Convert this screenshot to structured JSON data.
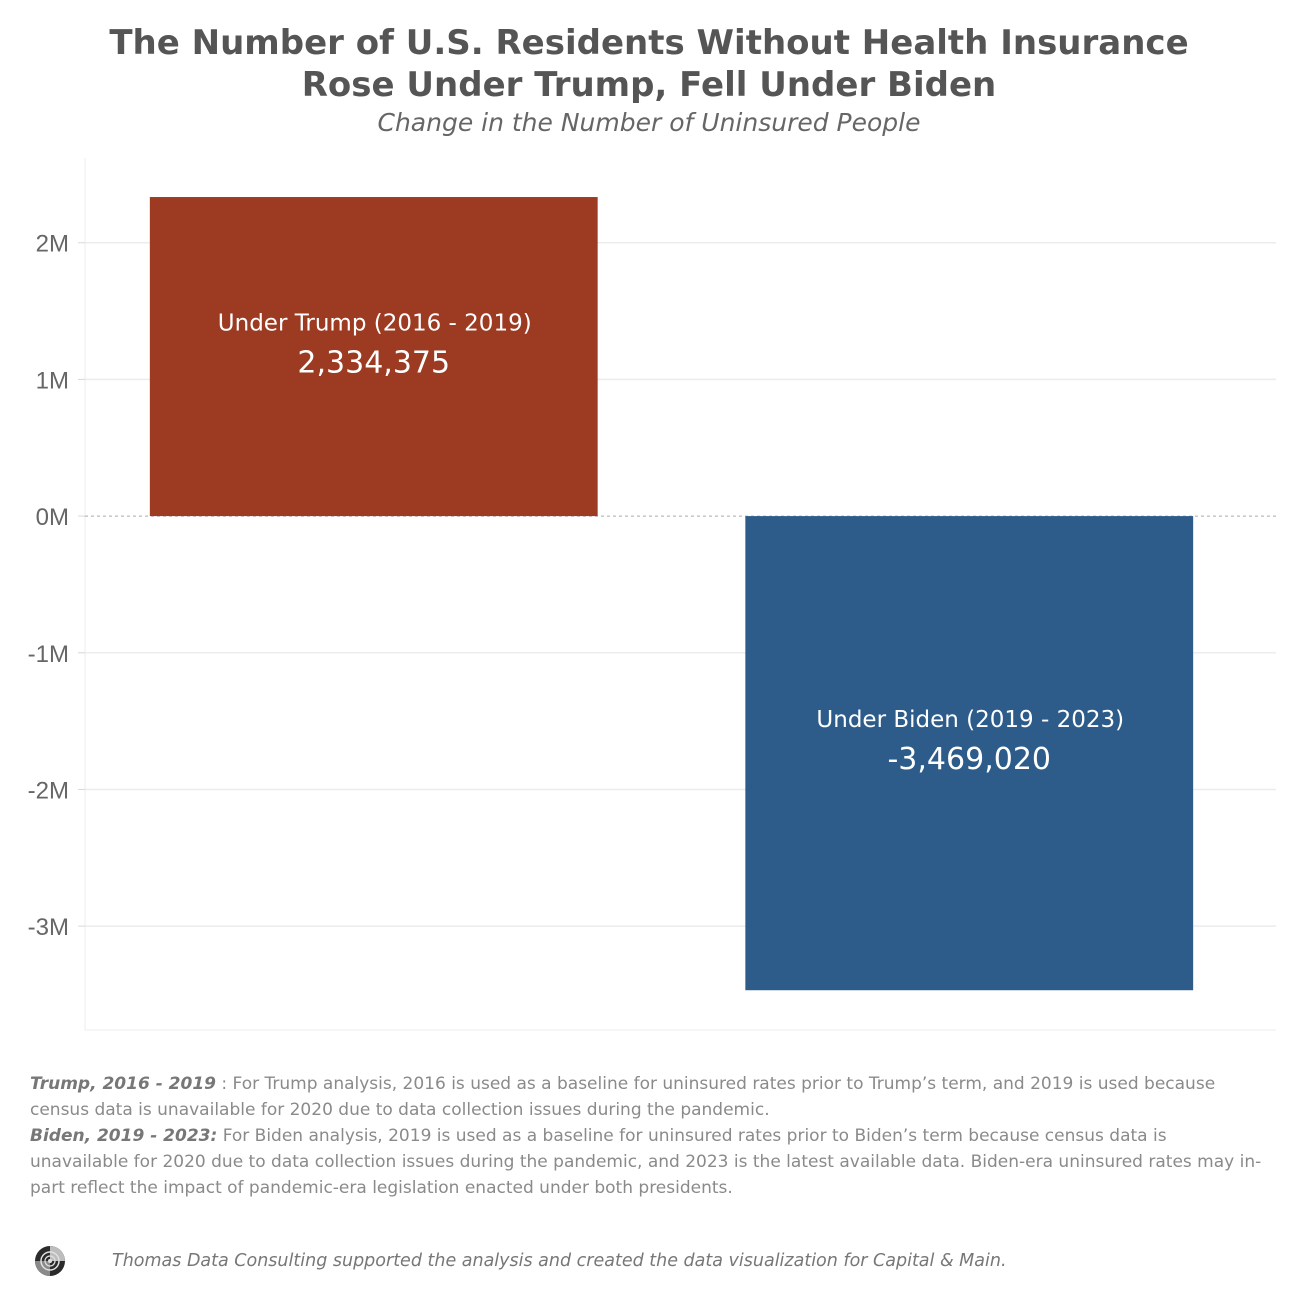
{
  "chart_data": {
    "type": "bar",
    "title_line1": "The Number of U.S. Residents Without Health Insurance",
    "title_line2": "Rose Under Trump, Fell Under Biden",
    "subtitle": "Change in the Number of Uninsured People",
    "categories": [
      "Under Trump (2016 - 2019)",
      "Under Biden (2019 - 2023)"
    ],
    "values": [
      2334375,
      -3469020
    ],
    "value_labels": [
      "2,334,375",
      "-3,469,020"
    ],
    "colors": [
      "#9c3b22",
      "#2d5c8a"
    ],
    "yticks": [
      2000000,
      1000000,
      0,
      -1000000,
      -2000000,
      -3000000
    ],
    "ytick_labels": [
      "2M",
      "1M",
      "0M",
      "-1M",
      "-2M",
      "-3M"
    ],
    "ylim": [
      -3760000,
      2620000
    ],
    "xlabel": "",
    "ylabel": "",
    "grid": true,
    "zero_line": "dashed"
  },
  "notes": {
    "trump_label": "Trump, 2016 - 2019",
    "trump_text": " : For Trump analysis, 2016 is used as a baseline for uninsured rates prior to Trump’s term, and 2019 is used because census data is unavailable for 2020 due to data collection issues during the pandemic.",
    "biden_label": "Biden, 2019 - 2023:",
    "biden_text": " For Biden analysis, 2019 is used as a baseline for uninsured rates prior to Biden’s term because census data is unavailable for 2020 due to data collection issues during the pandemic, and 2023 is the latest available data. Biden-era uninsured rates may in-part reflect the impact of pandemic-era legislation enacted under both presidents."
  },
  "footer": {
    "credit": "Thomas Data Consulting supported the analysis and created the data visualization for Capital & Main.",
    "logo_icon": "spiral-logo-icon"
  }
}
